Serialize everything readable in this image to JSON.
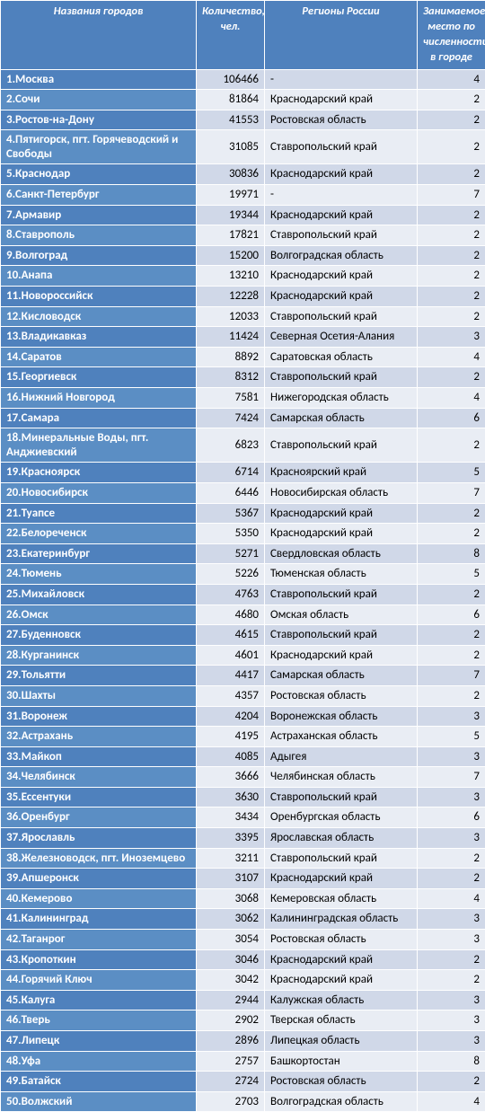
{
  "columns": [
    "Названия городов",
    "Количество, чел.",
    "Регионы России",
    "Занимаемое место по численности в городе"
  ],
  "rows": [
    {
      "n": 1,
      "city": "Москва",
      "qty": "106466",
      "region": "-",
      "rank": 4
    },
    {
      "n": 2,
      "city": "Сочи",
      "qty": "81864",
      "region": "Краснодарский край",
      "rank": 2
    },
    {
      "n": 3,
      "city": "Ростов-на-Дону",
      "qty": "41553",
      "region": "Ростовская область",
      "rank": 2
    },
    {
      "n": 4,
      "city": "Пятигорск, пгт. Горячеводский и Свободы",
      "qty": "31085",
      "region": "Ставропольский край",
      "rank": 2
    },
    {
      "n": 5,
      "city": "Краснодар",
      "qty": "30836",
      "region": "Краснодарский край",
      "rank": 2
    },
    {
      "n": 6,
      "city": "Санкт-Петербург",
      "qty": "19971",
      "region": "-",
      "rank": 7
    },
    {
      "n": 7,
      "city": "Армавир",
      "qty": "19344",
      "region": "Краснодарский край",
      "rank": 2
    },
    {
      "n": 8,
      "city": "Ставрополь",
      "qty": "17821",
      "region": "Ставропольский край",
      "rank": 2
    },
    {
      "n": 9,
      "city": "Волгоград",
      "qty": "15200",
      "region": "Волгоградская область",
      "rank": 2
    },
    {
      "n": 10,
      "city": "Анапа",
      "qty": "13210",
      "region": "Краснодарский край",
      "rank": 2
    },
    {
      "n": 11,
      "city": "Новороссийск",
      "qty": "12228",
      "region": "Краснодарский край",
      "rank": 2
    },
    {
      "n": 12,
      "city": "Кисловодск",
      "qty": "12033",
      "region": "Ставропольский край",
      "rank": 2
    },
    {
      "n": 13,
      "city": "Владикавказ",
      "qty": "11424",
      "region": "Северная Осетия-Алания",
      "rank": 3
    },
    {
      "n": 14,
      "city": "Саратов",
      "qty": "8892",
      "region": "Саратовская область",
      "rank": 4
    },
    {
      "n": 15,
      "city": "Георгиевск",
      "qty": "8312",
      "region": "Ставропольский край",
      "rank": 2
    },
    {
      "n": 16,
      "city": "Нижний Новгород",
      "qty": "7581",
      "region": "Нижегородская область",
      "rank": 4
    },
    {
      "n": 17,
      "city": "Самара",
      "qty": "7424",
      "region": "Самарская область",
      "rank": 6
    },
    {
      "n": 18,
      "city": "Минеральные Воды, пгт. Анджиевский",
      "qty": "6823",
      "region": "Ставропольский край",
      "rank": 2
    },
    {
      "n": 19,
      "city": "Красноярск",
      "qty": "6714",
      "region": "Красноярский край",
      "rank": 5
    },
    {
      "n": 20,
      "city": "Новосибирск",
      "qty": "6446",
      "region": "Новосибирская область",
      "rank": 7
    },
    {
      "n": 21,
      "city": "Туапсе",
      "qty": "5367",
      "region": "Краснодарский край",
      "rank": 2
    },
    {
      "n": 22,
      "city": "Белореченск",
      "qty": "5350",
      "region": "Краснодарский край",
      "rank": 2
    },
    {
      "n": 23,
      "city": "Екатеринбург",
      "qty": "5271",
      "region": "Свердловская область",
      "rank": 8
    },
    {
      "n": 24,
      "city": "Тюмень",
      "qty": "5226",
      "region": "Тюменская область",
      "rank": 5
    },
    {
      "n": 25,
      "city": "Михайловск",
      "qty": "4763",
      "region": "Ставропольский край",
      "rank": 2
    },
    {
      "n": 26,
      "city": "Омск",
      "qty": "4680",
      "region": "Омская область",
      "rank": 6
    },
    {
      "n": 27,
      "city": "Буденновск",
      "qty": "4615",
      "region": "Ставропольский край",
      "rank": 2
    },
    {
      "n": 28,
      "city": "Курганинск",
      "qty": "4601",
      "region": "Краснодарский край",
      "rank": 2
    },
    {
      "n": 29,
      "city": "Тольятти",
      "qty": "4417",
      "region": "Самарская область",
      "rank": 7
    },
    {
      "n": 30,
      "city": "Шахты",
      "qty": "4357",
      "region": "Ростовская область",
      "rank": 2
    },
    {
      "n": 31,
      "city": "Воронеж",
      "qty": "4204",
      "region": "Воронежская область",
      "rank": 3
    },
    {
      "n": 32,
      "city": "Астрахань",
      "qty": "4195",
      "region": "Астраханская область",
      "rank": 5
    },
    {
      "n": 33,
      "city": "Майкоп",
      "qty": "4085",
      "region": "Адыгея",
      "rank": 3
    },
    {
      "n": 34,
      "city": "Челябинск",
      "qty": "3666",
      "region": "Челябинская область",
      "rank": 7
    },
    {
      "n": 35,
      "city": "Ессентуки",
      "qty": "3630",
      "region": "Ставропольский край",
      "rank": 3
    },
    {
      "n": 36,
      "city": "Оренбург",
      "qty": "3434",
      "region": "Оренбургская область",
      "rank": 6
    },
    {
      "n": 37,
      "city": "Ярославль",
      "qty": "3395",
      "region": "Ярославская область",
      "rank": 3
    },
    {
      "n": 38,
      "city": "Железноводск, пгт. Иноземцево",
      "qty": "3211",
      "region": "Ставропольский край",
      "rank": 2
    },
    {
      "n": 39,
      "city": "Апшеронск",
      "qty": "3107",
      "region": "Краснодарский край",
      "rank": 2
    },
    {
      "n": 40,
      "city": "Кемерово",
      "qty": "3068",
      "region": "Кемеровская область",
      "rank": 4
    },
    {
      "n": 41,
      "city": "Калининград",
      "qty": "3062",
      "region": "Калининградская область",
      "rank": 3
    },
    {
      "n": 42,
      "city": "Таганрог",
      "qty": "3054",
      "region": "Ростовская область",
      "rank": 3
    },
    {
      "n": 43,
      "city": "Кропоткин",
      "qty": "3046",
      "region": "Краснодарский край",
      "rank": 2
    },
    {
      "n": 44,
      "city": "Горячий Ключ",
      "qty": "3042",
      "region": "Краснодарский край",
      "rank": 2
    },
    {
      "n": 45,
      "city": "Калуга",
      "qty": "2944",
      "region": "Калужская область",
      "rank": 3
    },
    {
      "n": 46,
      "city": "Тверь",
      "qty": "2902",
      "region": "Тверская область",
      "rank": 3
    },
    {
      "n": 47,
      "city": "Липецк",
      "qty": "2896",
      "region": "Липецкая область",
      "rank": 3,
      "pad": " "
    },
    {
      "n": 48,
      "city": "Уфа",
      "qty": "2757",
      "region": "Башкортостан",
      "rank": 8
    },
    {
      "n": 49,
      "city": "Батайск",
      "qty": "2724",
      "region": "Ростовская область",
      "rank": 2
    },
    {
      "n": 50,
      "city": "Волжский",
      "qty": "2703",
      "region": "Волгоградская область",
      "rank": 4
    }
  ]
}
